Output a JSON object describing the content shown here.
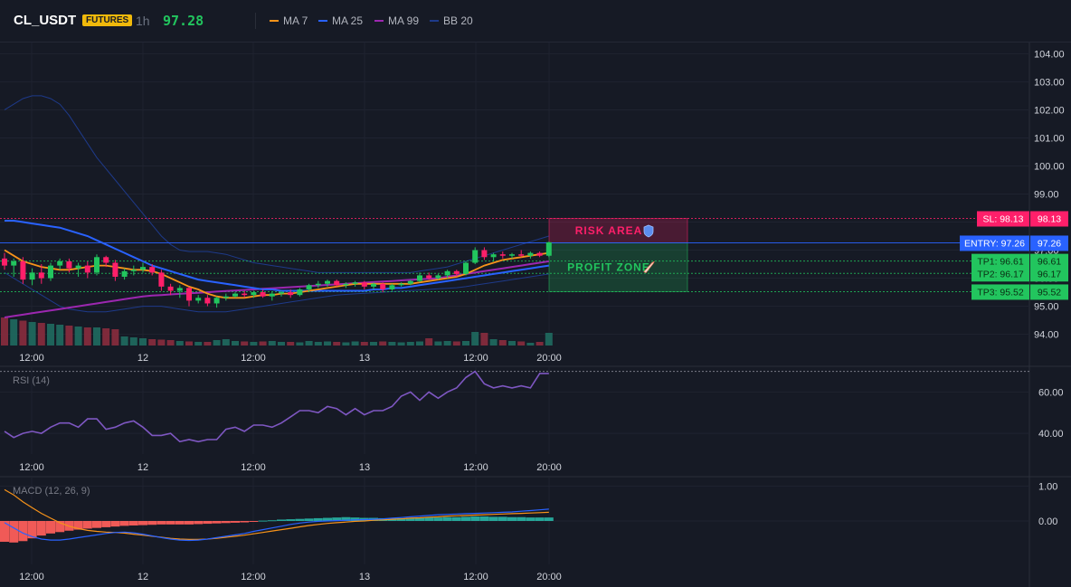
{
  "header": {
    "symbol": "CL_USDT",
    "badge": "FUTURES",
    "timeframe": "1h",
    "price": "97.28",
    "legend": [
      {
        "label": "MA 7",
        "color": "#f7931a"
      },
      {
        "label": "MA 25",
        "color": "#2962ff"
      },
      {
        "label": "MA 99",
        "color": "#9c27b0"
      },
      {
        "label": "BB 20",
        "color": "#1e3a8a"
      }
    ]
  },
  "colors": {
    "up": "#26a69a",
    "up_bright": "#22c55e",
    "down": "#ef4462",
    "down_bright": "#ff1f6a",
    "background": "#161a25",
    "grid": "#1f2330",
    "rsi": "#7e57c2",
    "macd_line": "#2962ff",
    "signal_line": "#f7931a"
  },
  "chart_data": [
    {
      "type": "candlestick",
      "name": "price",
      "x_tick_labels": [
        "12:00",
        "12",
        "12:00",
        "13",
        "12:00",
        "20:00"
      ],
      "x_tick_index": [
        7,
        19,
        31,
        43,
        55,
        63
      ],
      "ylim": [
        93.6,
        104.4
      ],
      "y_ticks": [
        "94.00",
        "95.00",
        "96.00",
        "97.00",
        "98.00",
        "99.00",
        "100.00",
        "101.00",
        "102.00",
        "103.00",
        "104.00"
      ],
      "grid": true,
      "candles": [
        [
          96.7,
          96.9,
          96.3,
          96.45
        ],
        [
          96.45,
          96.7,
          96.05,
          96.6
        ],
        [
          96.6,
          96.75,
          95.8,
          95.95
        ],
        [
          95.95,
          96.35,
          95.75,
          96.2
        ],
        [
          96.2,
          96.5,
          95.8,
          96.0
        ],
        [
          96.0,
          96.55,
          95.9,
          96.45
        ],
        [
          96.45,
          96.7,
          96.3,
          96.6
        ],
        [
          96.6,
          96.7,
          96.2,
          96.35
        ],
        [
          96.35,
          96.55,
          96.05,
          96.45
        ],
        [
          96.45,
          96.6,
          96.0,
          96.2
        ],
        [
          96.2,
          96.85,
          96.1,
          96.75
        ],
        [
          96.75,
          96.8,
          96.4,
          96.55
        ],
        [
          96.55,
          96.65,
          95.9,
          96.05
        ],
        [
          96.05,
          96.35,
          95.95,
          96.25
        ],
        [
          96.25,
          96.45,
          96.1,
          96.3
        ],
        [
          96.3,
          96.55,
          96.2,
          96.4
        ],
        [
          96.4,
          96.5,
          96.1,
          96.2
        ],
        [
          96.2,
          96.3,
          95.55,
          95.7
        ],
        [
          95.7,
          95.8,
          95.4,
          95.55
        ],
        [
          95.55,
          95.75,
          95.3,
          95.65
        ],
        [
          95.65,
          95.7,
          95.0,
          95.2
        ],
        [
          95.2,
          95.4,
          95.1,
          95.3
        ],
        [
          95.3,
          95.4,
          95.0,
          95.1
        ],
        [
          95.1,
          95.35,
          94.95,
          95.3
        ],
        [
          95.3,
          95.45,
          95.2,
          95.35
        ],
        [
          95.35,
          95.5,
          95.3,
          95.45
        ],
        [
          95.45,
          95.55,
          95.3,
          95.4
        ],
        [
          95.4,
          95.55,
          95.3,
          95.5
        ],
        [
          95.5,
          95.6,
          95.3,
          95.35
        ],
        [
          95.35,
          95.5,
          95.2,
          95.45
        ],
        [
          95.45,
          95.55,
          95.35,
          95.5
        ],
        [
          95.5,
          95.6,
          95.3,
          95.4
        ],
        [
          95.4,
          95.65,
          95.35,
          95.6
        ],
        [
          95.6,
          95.8,
          95.5,
          95.75
        ],
        [
          95.75,
          95.9,
          95.65,
          95.8
        ],
        [
          95.8,
          95.95,
          95.7,
          95.9
        ],
        [
          95.9,
          95.95,
          95.7,
          95.75
        ],
        [
          95.75,
          95.85,
          95.65,
          95.8
        ],
        [
          95.8,
          95.9,
          95.7,
          95.85
        ],
        [
          95.85,
          95.9,
          95.6,
          95.7
        ],
        [
          95.7,
          95.85,
          95.6,
          95.8
        ],
        [
          95.8,
          95.85,
          95.5,
          95.6
        ],
        [
          95.6,
          95.8,
          95.55,
          95.75
        ],
        [
          95.75,
          95.85,
          95.7,
          95.8
        ],
        [
          95.8,
          95.95,
          95.75,
          95.9
        ],
        [
          95.9,
          96.2,
          95.85,
          96.1
        ],
        [
          96.1,
          96.2,
          95.95,
          96.0
        ],
        [
          96.0,
          96.15,
          95.95,
          96.1
        ],
        [
          96.1,
          96.3,
          96.0,
          96.25
        ],
        [
          96.25,
          96.3,
          96.05,
          96.15
        ],
        [
          96.15,
          96.6,
          96.1,
          96.55
        ],
        [
          96.55,
          97.1,
          96.5,
          97.0
        ],
        [
          97.0,
          97.1,
          96.65,
          96.75
        ],
        [
          96.75,
          96.9,
          96.6,
          96.85
        ],
        [
          96.85,
          96.95,
          96.7,
          96.8
        ],
        [
          96.8,
          96.9,
          96.7,
          96.85
        ],
        [
          96.85,
          97.0,
          96.75,
          96.8
        ],
        [
          96.8,
          96.95,
          96.7,
          96.9
        ],
        [
          96.9,
          96.95,
          96.75,
          96.8
        ],
        [
          96.8,
          97.3,
          96.75,
          97.28
        ]
      ],
      "volume": [
        62,
        58,
        55,
        52,
        50,
        48,
        46,
        44,
        42,
        40,
        40,
        38,
        36,
        20,
        18,
        16,
        14,
        13,
        12,
        10,
        9,
        8,
        8,
        12,
        14,
        10,
        9,
        8,
        9,
        10,
        8,
        8,
        7,
        10,
        8,
        9,
        8,
        7,
        9,
        8,
        8,
        9,
        8,
        7,
        8,
        9,
        16,
        9,
        10,
        9,
        10,
        30,
        28,
        14,
        12,
        10,
        9,
        6,
        8,
        28
      ],
      "ma7": [
        97.0,
        96.8,
        96.6,
        96.5,
        96.4,
        96.35,
        96.3,
        96.3,
        96.35,
        96.4,
        96.45,
        96.45,
        96.4,
        96.35,
        96.3,
        96.3,
        96.25,
        96.15,
        96.0,
        95.85,
        95.7,
        95.6,
        95.45,
        95.35,
        95.3,
        95.3,
        95.3,
        95.35,
        95.4,
        95.4,
        95.45,
        95.45,
        95.5,
        95.55,
        95.6,
        95.65,
        95.7,
        95.75,
        95.8,
        95.8,
        95.8,
        95.8,
        95.8,
        95.8,
        95.8,
        95.85,
        95.9,
        95.95,
        96.0,
        96.05,
        96.15,
        96.3,
        96.45,
        96.55,
        96.65,
        96.7,
        96.75,
        96.8,
        96.85,
        96.9
      ],
      "ma25": [
        98.05,
        98.05,
        98.0,
        97.95,
        97.9,
        97.85,
        97.8,
        97.7,
        97.6,
        97.5,
        97.35,
        97.2,
        97.05,
        96.9,
        96.75,
        96.6,
        96.45,
        96.35,
        96.25,
        96.15,
        96.05,
        95.95,
        95.9,
        95.85,
        95.8,
        95.75,
        95.7,
        95.65,
        95.6,
        95.6,
        95.55,
        95.55,
        95.55,
        95.55,
        95.55,
        95.55,
        95.55,
        95.55,
        95.55,
        95.55,
        95.6,
        95.6,
        95.65,
        95.65,
        95.7,
        95.75,
        95.8,
        95.85,
        95.9,
        95.95,
        96.0,
        96.05,
        96.1,
        96.15,
        96.2,
        96.25,
        96.3,
        96.35,
        96.4,
        96.45
      ],
      "ma99": [
        94.6,
        94.65,
        94.7,
        94.75,
        94.8,
        94.85,
        94.9,
        94.95,
        95.0,
        95.05,
        95.1,
        95.15,
        95.2,
        95.25,
        95.3,
        95.35,
        95.38,
        95.4,
        95.42,
        95.44,
        95.46,
        95.48,
        95.5,
        95.52,
        95.54,
        95.56,
        95.58,
        95.6,
        95.62,
        95.64,
        95.66,
        95.68,
        95.7,
        95.72,
        95.74,
        95.76,
        95.78,
        95.8,
        95.82,
        95.84,
        95.86,
        95.88,
        95.9,
        95.92,
        95.94,
        95.96,
        95.98,
        96.0,
        96.05,
        96.1,
        96.15,
        96.2,
        96.25,
        96.3,
        96.35,
        96.4,
        96.45,
        96.5,
        96.55,
        96.6
      ],
      "bb_upper": [
        102.0,
        102.2,
        102.4,
        102.5,
        102.5,
        102.4,
        102.2,
        101.8,
        101.3,
        100.8,
        100.3,
        99.9,
        99.5,
        99.1,
        98.7,
        98.3,
        97.9,
        97.5,
        97.2,
        97.0,
        96.95,
        96.95,
        96.95,
        96.9,
        96.85,
        96.75,
        96.65,
        96.55,
        96.5,
        96.45,
        96.4,
        96.35,
        96.3,
        96.25,
        96.2,
        96.2,
        96.2,
        96.2,
        96.2,
        96.2,
        96.2,
        96.2,
        96.2,
        96.2,
        96.2,
        96.25,
        96.3,
        96.35,
        96.4,
        96.5,
        96.6,
        96.7,
        96.8,
        96.9,
        97.0,
        97.1,
        97.2,
        97.3,
        97.4,
        97.5
      ],
      "bb_lower": [
        96.2,
        96.0,
        95.8,
        95.6,
        95.4,
        95.2,
        95.0,
        94.9,
        94.85,
        94.8,
        94.8,
        94.8,
        94.85,
        94.9,
        94.95,
        95.0,
        95.0,
        95.0,
        94.95,
        94.9,
        94.85,
        94.8,
        94.8,
        94.8,
        94.8,
        94.85,
        94.9,
        94.95,
        95.0,
        95.05,
        95.1,
        95.15,
        95.2,
        95.25,
        95.3,
        95.35,
        95.4,
        95.42,
        95.44,
        95.46,
        95.48,
        95.5,
        95.52,
        95.54,
        95.56,
        95.58,
        95.6,
        95.62,
        95.64,
        95.66,
        95.7,
        95.75,
        95.8,
        95.85,
        95.9,
        95.95,
        96.0,
        96.05,
        96.1,
        96.15
      ],
      "levels": [
        {
          "label": "SL: 98.13",
          "value": 98.13,
          "price": "98.13",
          "color": "#ff1f6a",
          "style": "dotted"
        },
        {
          "label": "ENTRY: 97.26",
          "value": 97.26,
          "price": "97.26",
          "color": "#2962ff",
          "style": "solid"
        },
        {
          "label": "TP1: 96.61",
          "value": 96.61,
          "price": "96.61",
          "color": "#22c55e",
          "style": "dotted"
        },
        {
          "label": "TP2: 96.17",
          "value": 96.17,
          "price": "96.17",
          "color": "#22c55e",
          "style": "dotted"
        },
        {
          "label": "TP3: 95.52",
          "value": 95.52,
          "price": "95.52",
          "color": "#22c55e",
          "style": "dotted"
        }
      ],
      "zones": [
        {
          "label": "RISK AREA",
          "icon": "shield-icon",
          "from": 97.26,
          "to": 98.13,
          "color": "#ff1f6a"
        },
        {
          "label": "PROFIT ZONE",
          "icon": "rocket-icon",
          "from": 95.52,
          "to": 97.26,
          "color": "#22c55e"
        }
      ]
    },
    {
      "type": "line",
      "name": "RSI",
      "title": "RSI (14)",
      "x_tick_labels": [
        "12:00",
        "12",
        "12:00",
        "13",
        "12:00",
        "20:00"
      ],
      "ylim": [
        30,
        72
      ],
      "y_ticks": [
        "40.00",
        "60.00"
      ],
      "overbought": 70,
      "values": [
        41,
        38,
        40,
        41,
        40,
        43,
        45,
        45,
        43,
        47,
        47,
        42,
        43,
        45,
        46,
        43,
        39,
        39,
        40,
        36,
        37,
        36,
        37,
        37,
        42,
        43,
        41,
        44,
        44,
        43,
        45,
        48,
        51,
        51,
        50,
        53,
        52,
        49,
        52,
        49,
        51,
        51,
        53,
        58,
        60,
        56,
        60,
        57,
        60,
        62,
        67,
        70,
        64,
        62,
        63,
        62,
        63,
        62,
        69,
        69
      ]
    },
    {
      "type": "bar+line",
      "name": "MACD",
      "title": "MACD (12, 26, 9)",
      "x_tick_labels": [
        "12:00",
        "12",
        "12:00",
        "13",
        "12:00",
        "20:00"
      ],
      "ylim": [
        -1.25,
        1.25
      ],
      "y_ticks": [
        "1.00",
        "0.00"
      ],
      "histogram": [
        -0.6,
        -0.62,
        -0.58,
        -0.5,
        -0.42,
        -0.36,
        -0.32,
        -0.28,
        -0.25,
        -0.22,
        -0.2,
        -0.18,
        -0.16,
        -0.14,
        -0.13,
        -0.12,
        -0.11,
        -0.1,
        -0.1,
        -0.1,
        -0.1,
        -0.09,
        -0.08,
        -0.07,
        -0.06,
        -0.05,
        -0.04,
        -0.02,
        0.01,
        0.02,
        0.04,
        0.05,
        0.06,
        0.07,
        0.08,
        0.09,
        0.1,
        0.11,
        0.1,
        0.09,
        0.09,
        0.08,
        0.08,
        0.08,
        0.09,
        0.09,
        0.1,
        0.1,
        0.11,
        0.11,
        0.12,
        0.13,
        0.13,
        0.12,
        0.12,
        0.11,
        0.11,
        0.1,
        0.1,
        0.1
      ],
      "macd": [
        -0.05,
        -0.2,
        -0.35,
        -0.45,
        -0.52,
        -0.55,
        -0.55,
        -0.52,
        -0.48,
        -0.44,
        -0.4,
        -0.36,
        -0.33,
        -0.32,
        -0.34,
        -0.38,
        -0.43,
        -0.48,
        -0.52,
        -0.55,
        -0.56,
        -0.55,
        -0.52,
        -0.48,
        -0.44,
        -0.4,
        -0.36,
        -0.3,
        -0.25,
        -0.2,
        -0.15,
        -0.1,
        -0.06,
        -0.03,
        -0.01,
        0.0,
        0.01,
        0.02,
        0.03,
        0.04,
        0.05,
        0.06,
        0.08,
        0.1,
        0.12,
        0.14,
        0.16,
        0.18,
        0.19,
        0.2,
        0.21,
        0.22,
        0.23,
        0.24,
        0.25,
        0.26,
        0.28,
        0.3,
        0.32,
        0.34
      ],
      "signal": [
        0.9,
        0.75,
        0.55,
        0.38,
        0.22,
        0.08,
        -0.05,
        -0.15,
        -0.22,
        -0.27,
        -0.3,
        -0.32,
        -0.33,
        -0.35,
        -0.38,
        -0.41,
        -0.44,
        -0.47,
        -0.5,
        -0.52,
        -0.53,
        -0.53,
        -0.52,
        -0.5,
        -0.47,
        -0.44,
        -0.41,
        -0.37,
        -0.33,
        -0.29,
        -0.25,
        -0.21,
        -0.17,
        -0.13,
        -0.1,
        -0.07,
        -0.05,
        -0.03,
        -0.01,
        0.0,
        0.02,
        0.03,
        0.05,
        0.06,
        0.08,
        0.09,
        0.11,
        0.12,
        0.14,
        0.15,
        0.16,
        0.17,
        0.18,
        0.19,
        0.2,
        0.21,
        0.22,
        0.23,
        0.24,
        0.25
      ]
    }
  ]
}
